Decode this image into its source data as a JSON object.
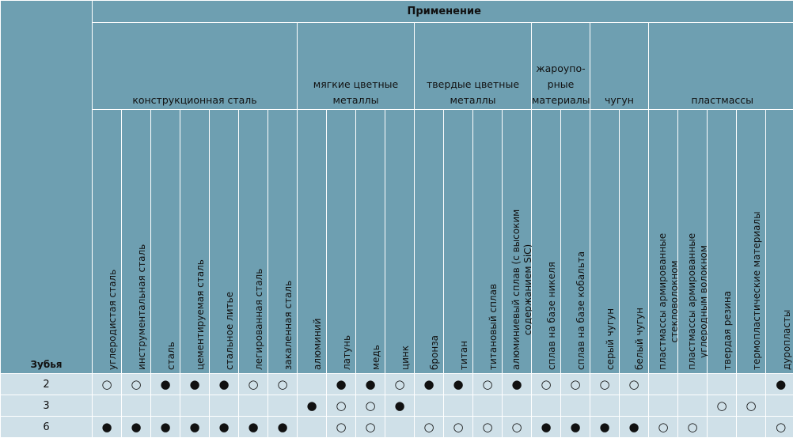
{
  "header": {
    "application_label": "Применение",
    "teeth_label": "Зубья"
  },
  "groups": [
    {
      "label": "конструкционная сталь",
      "span": 7
    },
    {
      "label": "мягкие цветные металлы",
      "span": 4
    },
    {
      "label": "твердые цветные металлы",
      "span": 4
    },
    {
      "label": "жароупо-рные материалы",
      "span": 2
    },
    {
      "label": "чугун",
      "span": 2
    },
    {
      "label": "пластмассы",
      "span": 5
    }
  ],
  "materials": [
    "углеродистая сталь",
    "инструментальная сталь",
    "сталь",
    "цементируемая сталь",
    "стальное литье",
    "легированная сталь",
    "закаленная сталь",
    "алюминий",
    "латунь",
    "медь",
    "цинк",
    "бронза",
    "титан",
    "титановый сплав",
    "алюминиевый сплав (с высоким содержанием SiC)",
    "сплав на базе никеля",
    "сплав на базе кобальта",
    "серый чугун",
    "белый чугун",
    "пластмассы армированные стекловолокном",
    "пластмассы армированные углеродным волокном",
    "твердая резина",
    "термопластические материалы",
    "дуропласты"
  ],
  "symbols": {
    "filled": "●",
    "empty": "○"
  },
  "rows": [
    {
      "teeth": "2",
      "marks": [
        "empty",
        "empty",
        "filled",
        "filled",
        "filled",
        "empty",
        "empty",
        "",
        "filled",
        "filled",
        "empty",
        "filled",
        "filled",
        "empty",
        "filled",
        "empty",
        "empty",
        "empty",
        "empty",
        "",
        "",
        "",
        "",
        "filled"
      ]
    },
    {
      "teeth": "3",
      "marks": [
        "",
        "",
        "",
        "",
        "",
        "",
        "",
        "filled",
        "empty",
        "empty",
        "filled",
        "",
        "",
        "",
        "",
        "",
        "",
        "",
        "",
        "",
        "",
        "empty",
        "empty",
        ""
      ]
    },
    {
      "teeth": "6",
      "marks": [
        "filled",
        "filled",
        "filled",
        "filled",
        "filled",
        "filled",
        "filled",
        "",
        "empty",
        "empty",
        "",
        "empty",
        "empty",
        "empty",
        "empty",
        "filled",
        "filled",
        "filled",
        "filled",
        "empty",
        "empty",
        "",
        "",
        "empty"
      ]
    }
  ]
}
